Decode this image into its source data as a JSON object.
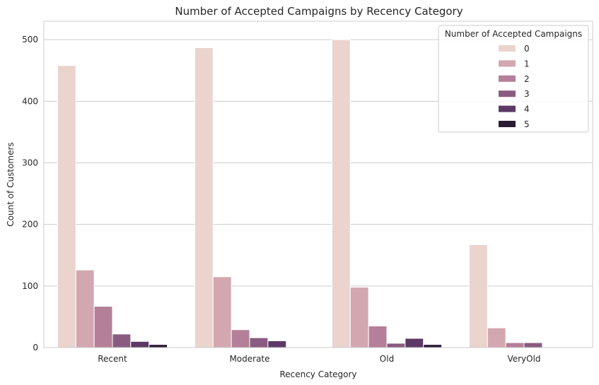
{
  "chart_data": {
    "type": "bar",
    "title": "Number of Accepted Campaigns by Recency Category",
    "xlabel": "Recency Category",
    "ylabel": "Count of Customers",
    "categories": [
      "Recent",
      "Moderate",
      "Old",
      "VeryOld"
    ],
    "ylim": [
      0,
      530
    ],
    "yticks": [
      0,
      100,
      200,
      300,
      400,
      500
    ],
    "grid": true,
    "legend": {
      "title": "Number of Accepted Campaigns",
      "placement": "top-right"
    },
    "series": [
      {
        "name": "0",
        "color": "#ebd3ce",
        "values": [
          458,
          487,
          500,
          167
        ]
      },
      {
        "name": "1",
        "color": "#d3a7b0",
        "values": [
          126,
          115,
          98,
          32
        ]
      },
      {
        "name": "2",
        "color": "#b47f98",
        "values": [
          67,
          29,
          35,
          8
        ]
      },
      {
        "name": "3",
        "color": "#8a5b80",
        "values": [
          22,
          16,
          7,
          8
        ]
      },
      {
        "name": "4",
        "color": "#5c3965",
        "values": [
          10,
          11,
          15,
          0
        ]
      },
      {
        "name": "5",
        "color": "#2b1c36",
        "values": [
          5,
          0,
          5,
          0
        ]
      }
    ]
  }
}
